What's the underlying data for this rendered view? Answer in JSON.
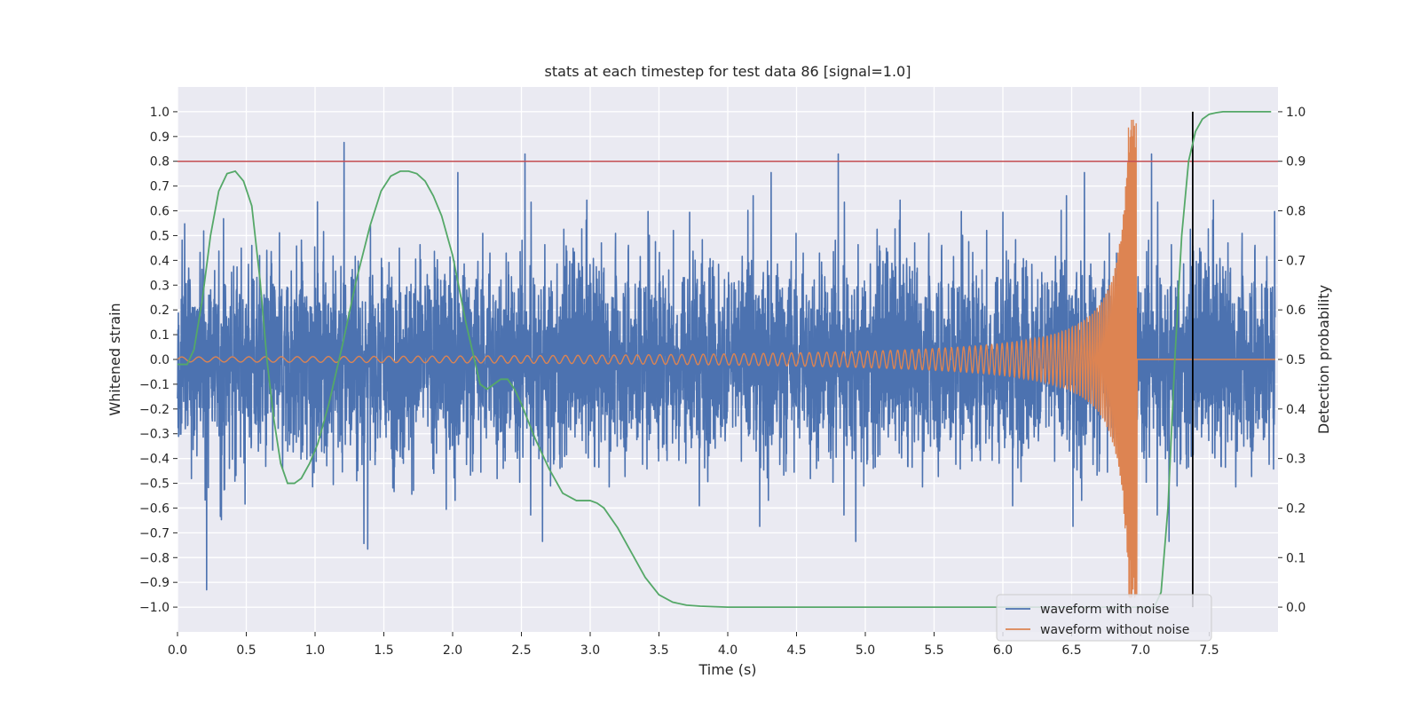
{
  "chart_data": {
    "type": "line",
    "title": "stats at each timestep for test data 86 [signal=1.0]",
    "xlabel": "Time (s)",
    "ylabel": "Whitened strain",
    "y2label": "Detection probability",
    "xlim": [
      0.0,
      8.0
    ],
    "ylim": [
      -1.1,
      1.1
    ],
    "y2lim": [
      -0.05,
      1.05
    ],
    "x_ticks": [
      "0.0",
      "0.5",
      "1.0",
      "1.5",
      "2.0",
      "2.5",
      "3.0",
      "3.5",
      "4.0",
      "4.5",
      "5.0",
      "5.5",
      "6.0",
      "6.5",
      "7.0",
      "7.5"
    ],
    "y_ticks": [
      "1.0",
      "0.9",
      "0.8",
      "0.7",
      "0.6",
      "0.5",
      "0.4",
      "0.3",
      "0.2",
      "0.1",
      "0.0",
      "−0.1",
      "−0.2",
      "−0.3",
      "−0.4",
      "−0.5",
      "−0.6",
      "−0.7",
      "−0.8",
      "−0.9",
      "−1.0"
    ],
    "y2_ticks": [
      "1.0",
      "0.9",
      "0.8",
      "0.7",
      "0.6",
      "0.5",
      "0.4",
      "0.3",
      "0.2",
      "0.1",
      "0.0"
    ],
    "threshold": 0.8,
    "vline_x": 7.38,
    "grid": true,
    "legend_position": "lower-right",
    "colors": {
      "background": "#eaeaf2",
      "grid": "#ffffff",
      "noise": "#4c72b0",
      "clean": "#dd8452",
      "probability": "#55a868",
      "threshold": "#c44e52",
      "vline": "#000000"
    },
    "series": [
      {
        "name": "waveform with noise",
        "axis": "left",
        "description_points": {
          "x": [
            0.0,
            0.7,
            1.4,
            3.4,
            6.5,
            6.97,
            7.5,
            7.98
          ],
          "peak_high": [
            0.62,
            0.55,
            0.6,
            0.9,
            0.78,
            1.0,
            0.58,
            0.63
          ],
          "peak_low": [
            -0.82,
            -0.92,
            -0.84,
            -0.6,
            -0.83,
            -0.9,
            -0.82,
            -0.65
          ]
        }
      },
      {
        "name": "waveform without noise",
        "axis": "left",
        "chirp": {
          "start_amp": 0.01,
          "merger_time": 6.97,
          "peak_amp": 0.97
        }
      },
      {
        "name": "",
        "axis": "right",
        "x": [
          0.0,
          0.07,
          0.12,
          0.18,
          0.24,
          0.3,
          0.36,
          0.42,
          0.48,
          0.54,
          0.6,
          0.65,
          0.7,
          0.75,
          0.8,
          0.85,
          0.9,
          0.96,
          1.02,
          1.1,
          1.2,
          1.3,
          1.4,
          1.48,
          1.55,
          1.62,
          1.68,
          1.74,
          1.8,
          1.86,
          1.92,
          2.0,
          2.1,
          2.2,
          2.25,
          2.3,
          2.35,
          2.4,
          2.45,
          2.5,
          2.6,
          2.7,
          2.8,
          2.9,
          3.0,
          3.05,
          3.1,
          3.2,
          3.3,
          3.4,
          3.5,
          3.6,
          3.7,
          3.8,
          4.0,
          4.5,
          5.0,
          5.5,
          6.0,
          6.5,
          6.9,
          7.1,
          7.15,
          7.2,
          7.25,
          7.3,
          7.35,
          7.4,
          7.45,
          7.5,
          7.55,
          7.6,
          7.7,
          7.8,
          7.95
        ],
        "y": [
          0.49,
          0.49,
          0.52,
          0.62,
          0.75,
          0.84,
          0.875,
          0.88,
          0.86,
          0.81,
          0.66,
          0.5,
          0.38,
          0.29,
          0.25,
          0.25,
          0.26,
          0.29,
          0.33,
          0.41,
          0.53,
          0.66,
          0.77,
          0.84,
          0.87,
          0.88,
          0.88,
          0.875,
          0.86,
          0.83,
          0.79,
          0.71,
          0.57,
          0.45,
          0.44,
          0.45,
          0.46,
          0.46,
          0.44,
          0.41,
          0.34,
          0.28,
          0.23,
          0.215,
          0.215,
          0.21,
          0.2,
          0.16,
          0.11,
          0.06,
          0.025,
          0.01,
          0.004,
          0.002,
          0.0,
          0.0,
          0.0,
          0.0,
          0.0,
          0.0,
          0.0,
          0.0,
          0.03,
          0.2,
          0.5,
          0.75,
          0.9,
          0.96,
          0.985,
          0.995,
          0.998,
          1.0,
          1.0,
          1.0,
          1.0
        ]
      }
    ]
  }
}
